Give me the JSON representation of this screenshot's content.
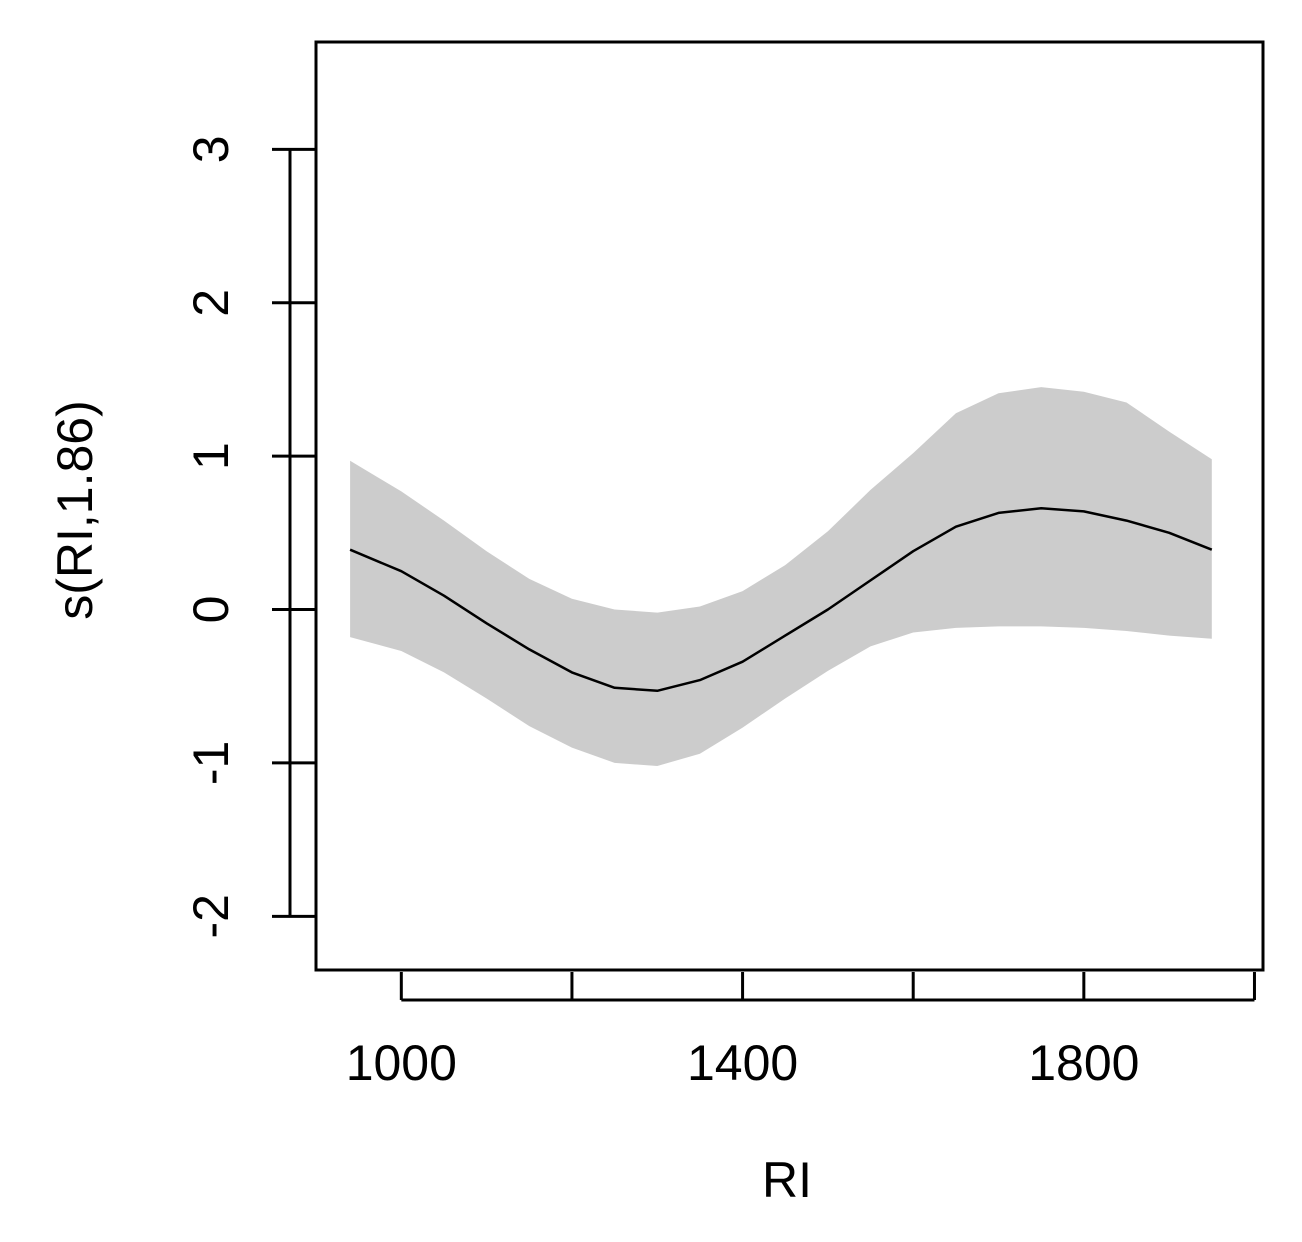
{
  "chart_data": {
    "type": "line",
    "title": "",
    "xlabel": "RI",
    "ylabel": "s(RI,1.86)",
    "xlim": [
      900,
      2010
    ],
    "ylim": [
      -2.35,
      3.7
    ],
    "x_ticks": [
      1000,
      1200,
      1400,
      1600,
      1800,
      2000
    ],
    "x_tick_labels": [
      "1000",
      "",
      "1400",
      "",
      "1800",
      ""
    ],
    "y_ticks": [
      -2,
      -1,
      0,
      1,
      2,
      3
    ],
    "y_tick_labels": [
      "-2",
      "-1",
      "0",
      "1",
      "2",
      "3"
    ],
    "grid": false,
    "colors": {
      "line": "#000000",
      "band": "#cccccc",
      "axis": "#000000"
    },
    "series": [
      {
        "x": [
          940,
          1000,
          1050,
          1100,
          1150,
          1200,
          1250,
          1300,
          1350,
          1400,
          1450,
          1500,
          1550,
          1600,
          1650,
          1700,
          1750,
          1800,
          1850,
          1900,
          1950
        ],
        "fit": [
          0.39,
          0.25,
          0.09,
          -0.09,
          -0.26,
          -0.41,
          -0.51,
          -0.53,
          -0.46,
          -0.34,
          -0.17,
          0.0,
          0.19,
          0.38,
          0.54,
          0.63,
          0.66,
          0.64,
          0.58,
          0.5,
          0.39
        ],
        "lower": [
          -0.18,
          -0.27,
          -0.41,
          -0.58,
          -0.76,
          -0.9,
          -1.0,
          -1.02,
          -0.94,
          -0.77,
          -0.58,
          -0.4,
          -0.24,
          -0.15,
          -0.12,
          -0.11,
          -0.11,
          -0.12,
          -0.14,
          -0.17,
          -0.19
        ],
        "upper": [
          0.97,
          0.77,
          0.58,
          0.38,
          0.2,
          0.07,
          0.0,
          -0.02,
          0.02,
          0.12,
          0.29,
          0.51,
          0.78,
          1.02,
          1.28,
          1.41,
          1.45,
          1.42,
          1.35,
          1.16,
          0.98
        ]
      }
    ]
  }
}
